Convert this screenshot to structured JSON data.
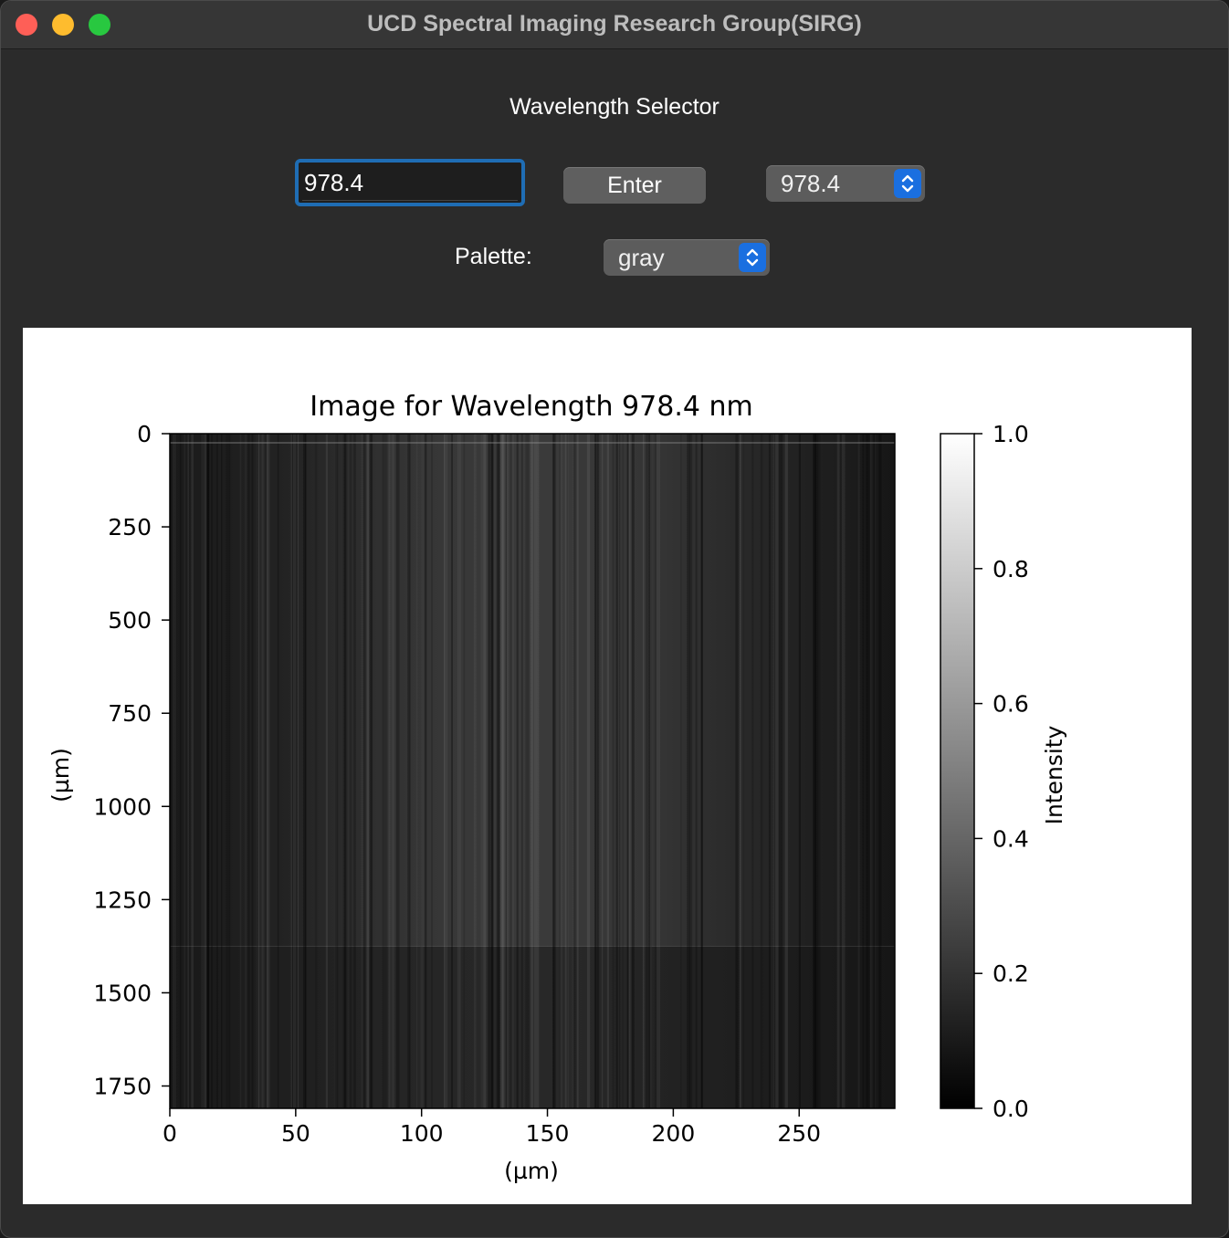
{
  "window": {
    "title": "UCD Spectral Imaging Research Group(SIRG)"
  },
  "controls": {
    "section_label": "Wavelength Selector",
    "wavelength_input_value": "978.4",
    "enter_label": "Enter",
    "wavelength_select_value": "978.4",
    "palette_label": "Palette:",
    "palette_select_value": "gray"
  },
  "chart_data": {
    "type": "heatmap",
    "title": "Image for Wavelength 978.4 nm",
    "xlabel": "(µm)",
    "ylabel": "(µm)",
    "colormap": "gray",
    "x_ticks": [
      0,
      50,
      100,
      150,
      200,
      250
    ],
    "y_ticks": [
      0,
      250,
      500,
      750,
      1000,
      1250,
      1500,
      1750
    ],
    "xlim": [
      0,
      288
    ],
    "ylim": [
      1810,
      0
    ],
    "colorbar": {
      "label": "Intensity",
      "ticks": [
        "0.0",
        "0.2",
        "0.4",
        "0.6",
        "0.8",
        "1.0"
      ],
      "range": [
        0.0,
        1.0
      ]
    }
  }
}
